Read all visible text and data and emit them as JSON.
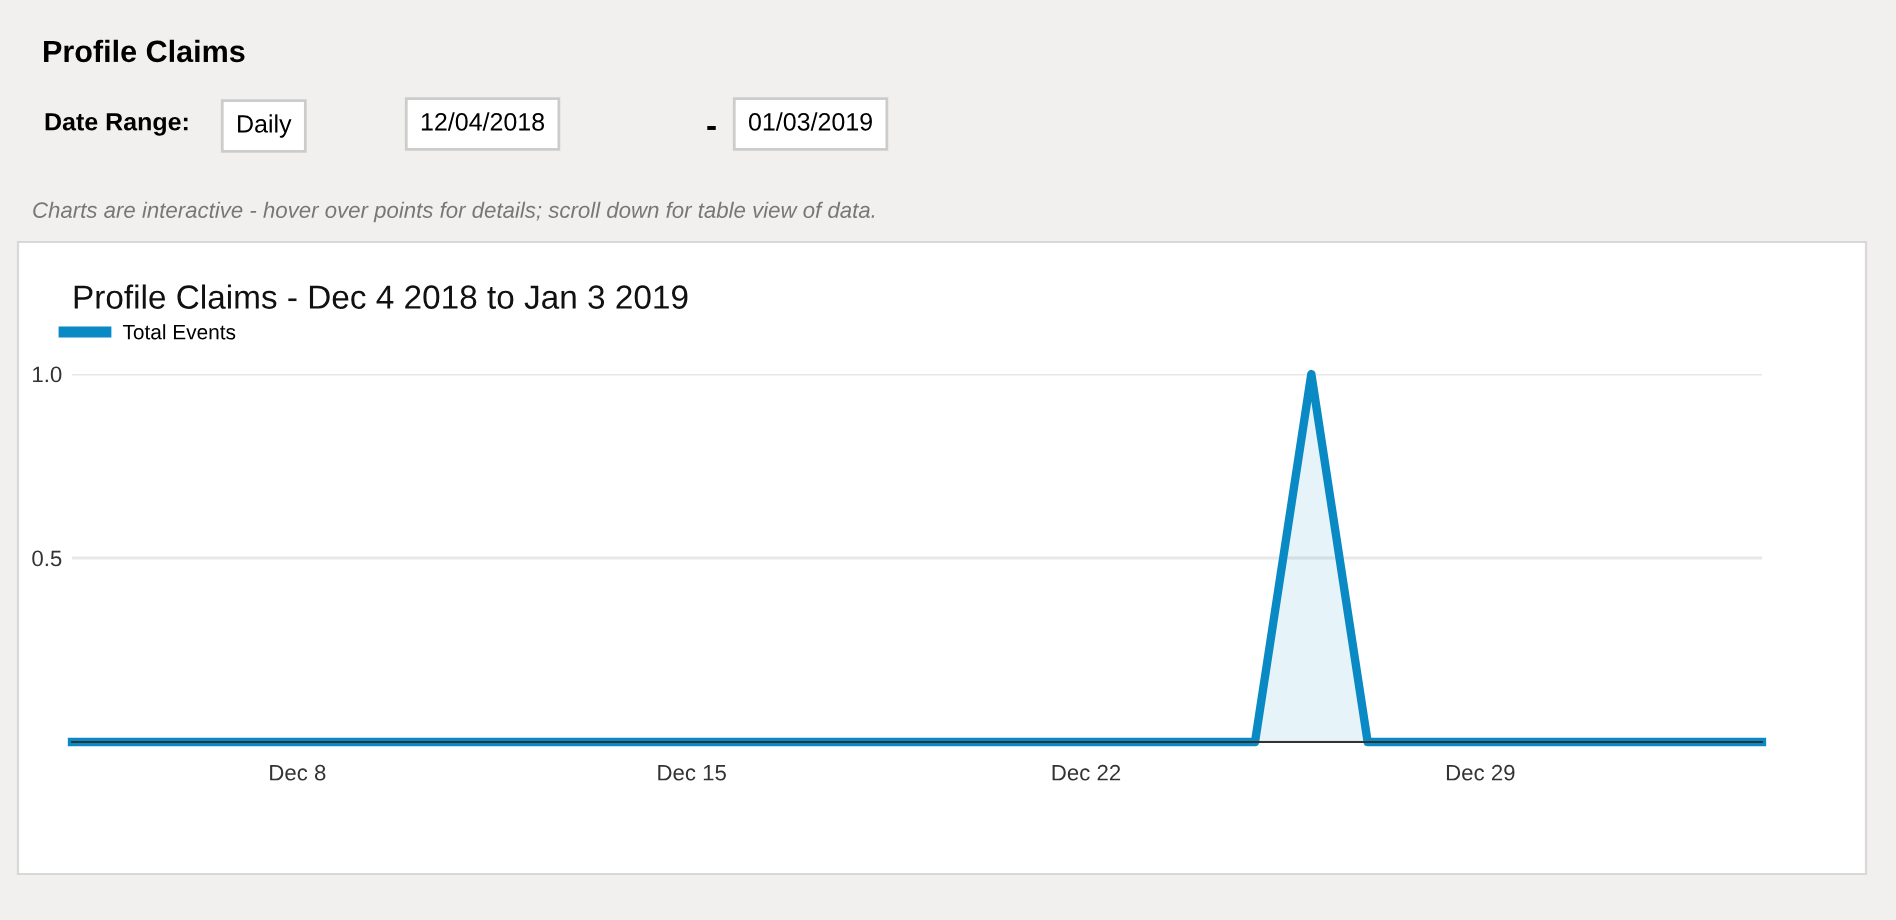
{
  "chart_data": {
    "type": "area",
    "title": "Profile Claims - Dec 4 2018 to Jan 3 2019",
    "annotations": [
      "Profile Claims",
      "Date Range:",
      "Daily",
      "12/04/2018",
      "-",
      "01/03/2019",
      "Charts are interactive - hover over points for details; scroll down for table view of data."
    ],
    "x": [
      "2018-12-04",
      "2018-12-05",
      "2018-12-06",
      "2018-12-07",
      "2018-12-08",
      "2018-12-09",
      "2018-12-10",
      "2018-12-11",
      "2018-12-12",
      "2018-12-13",
      "2018-12-14",
      "2018-12-15",
      "2018-12-16",
      "2018-12-17",
      "2018-12-18",
      "2018-12-19",
      "2018-12-20",
      "2018-12-21",
      "2018-12-22",
      "2018-12-23",
      "2018-12-24",
      "2018-12-25",
      "2018-12-26",
      "2018-12-27",
      "2018-12-28",
      "2018-12-29",
      "2018-12-30",
      "2018-12-31",
      "2019-01-01",
      "2019-01-02",
      "2019-01-03"
    ],
    "series": [
      {
        "name": "Total Events",
        "color": "#0a8ac5",
        "values": [
          0,
          0,
          0,
          0,
          0,
          0,
          0,
          0,
          0,
          0,
          0,
          0,
          0,
          0,
          0,
          0,
          0,
          0,
          0,
          0,
          0,
          0,
          1,
          0,
          0,
          0,
          0,
          0,
          0,
          0,
          0
        ]
      }
    ],
    "xlim": [
      "2018-12-04",
      "2019-01-03"
    ],
    "xticks": [
      {
        "value": "2018-12-08",
        "label": "Dec 8"
      },
      {
        "value": "2018-12-15",
        "label": "Dec 15"
      },
      {
        "value": "2018-12-22",
        "label": "Dec 22"
      },
      {
        "value": "2018-12-29",
        "label": "Dec 29"
      }
    ],
    "ylim": [
      0,
      1
    ],
    "yticks": [
      {
        "value": 0,
        "label": null
      },
      {
        "value": 0.5,
        "label": "0.5"
      },
      {
        "value": 1,
        "label": "1.0"
      }
    ],
    "grid": "y",
    "legend": "top left"
  }
}
